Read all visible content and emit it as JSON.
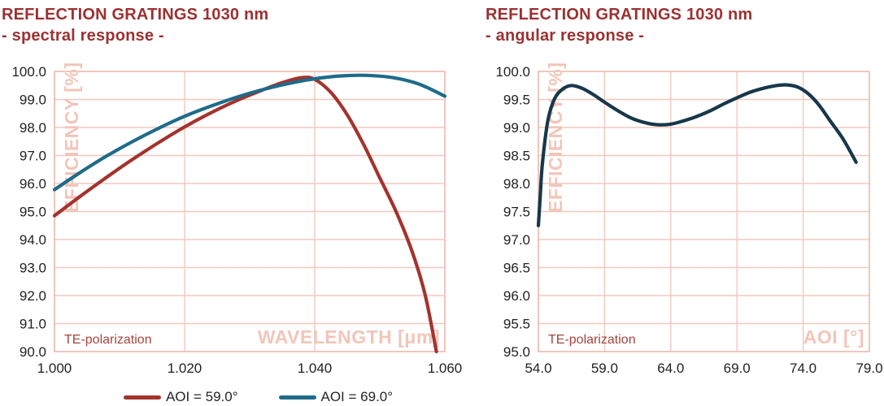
{
  "colors": {
    "title": "#9c3132",
    "grid": "#f3c8bd",
    "border": "#eebfb3",
    "watermark": "#f2c5b9",
    "annotation": "#a5443c",
    "tick": "#222222",
    "legend_text": "#262626"
  },
  "chart_data": [
    {
      "type": "line",
      "title": "REFLECTION GRATINGS 1030 nm",
      "subtitle": "- spectral response -",
      "xlabel": "WAVELENGTH [μm]",
      "ylabel": "EFFICIENCY [%]",
      "annotation": "TE-polarization",
      "xlim": [
        1.0,
        1.06
      ],
      "ylim": [
        90.0,
        100.0
      ],
      "grid": true,
      "legend_position": "bottom",
      "xticks": {
        "values": [
          1.0,
          1.02,
          1.04,
          1.06
        ],
        "labels": [
          "1.000",
          "1.020",
          "1.040",
          "1.060"
        ]
      },
      "yticks": {
        "values": [
          90,
          91,
          92,
          93,
          94,
          95,
          96,
          97,
          98,
          99,
          100
        ],
        "labels": [
          "90.0",
          "91.0",
          "92.0",
          "93.0",
          "94.0",
          "95.0",
          "96.0",
          "97.0",
          "98.0",
          "99.0",
          "100.0"
        ]
      },
      "series": [
        {
          "name": "AOI = 59.0°",
          "color": "#a3332e",
          "points": [
            [
              1.0,
              94.85
            ],
            [
              1.004,
              95.55
            ],
            [
              1.008,
              96.22
            ],
            [
              1.012,
              96.86
            ],
            [
              1.016,
              97.46
            ],
            [
              1.02,
              98.02
            ],
            [
              1.024,
              98.52
            ],
            [
              1.028,
              98.96
            ],
            [
              1.032,
              99.34
            ],
            [
              1.035,
              99.6
            ],
            [
              1.038,
              99.78
            ],
            [
              1.04,
              99.72
            ],
            [
              1.0425,
              99.25
            ],
            [
              1.045,
              98.45
            ],
            [
              1.0475,
              97.4
            ],
            [
              1.05,
              96.2
            ],
            [
              1.0525,
              95.0
            ],
            [
              1.055,
              93.55
            ],
            [
              1.057,
              92.0
            ],
            [
              1.0587,
              90.0
            ]
          ]
        },
        {
          "name": "AOI = 69.0°",
          "color": "#1e6b8a",
          "points": [
            [
              1.0,
              95.78
            ],
            [
              1.004,
              96.4
            ],
            [
              1.008,
              96.98
            ],
            [
              1.012,
              97.5
            ],
            [
              1.016,
              97.97
            ],
            [
              1.02,
              98.4
            ],
            [
              1.024,
              98.76
            ],
            [
              1.028,
              99.08
            ],
            [
              1.032,
              99.35
            ],
            [
              1.036,
              99.57
            ],
            [
              1.04,
              99.74
            ],
            [
              1.044,
              99.84
            ],
            [
              1.048,
              99.86
            ],
            [
              1.052,
              99.78
            ],
            [
              1.056,
              99.55
            ],
            [
              1.06,
              99.12
            ]
          ]
        }
      ]
    },
    {
      "type": "line",
      "title": "REFLECTION GRATINGS 1030 nm",
      "subtitle": "- angular response -",
      "xlabel": "AOI [°]",
      "ylabel": "EFFICIENCY [%]",
      "annotation": "TE-polarization",
      "xlim": [
        54.0,
        79.0
      ],
      "ylim": [
        95.0,
        100.0
      ],
      "grid": true,
      "legend_position": "none",
      "xticks": {
        "values": [
          54,
          59,
          64,
          69,
          74,
          79
        ],
        "labels": [
          "54.0",
          "59.0",
          "64.0",
          "69.0",
          "74.0",
          "79.0"
        ]
      },
      "yticks": {
        "values": [
          95,
          95.5,
          96,
          96.5,
          97,
          97.5,
          98,
          98.5,
          99,
          99.5,
          100
        ],
        "labels": [
          "95.0",
          "95.5",
          "96.0",
          "96.5",
          "97.0",
          "97.5",
          "98.0",
          "98.5",
          "99.0",
          "99.5",
          "100.0"
        ]
      },
      "series": [
        {
          "name": "",
          "color": "#17384a",
          "points": [
            [
              54.0,
              97.25
            ],
            [
              54.15,
              97.8
            ],
            [
              54.3,
              98.35
            ],
            [
              54.7,
              99.1
            ],
            [
              55.2,
              99.5
            ],
            [
              55.8,
              99.68
            ],
            [
              56.5,
              99.75
            ],
            [
              57.3,
              99.7
            ],
            [
              58.2,
              99.58
            ],
            [
              59.0,
              99.45
            ],
            [
              60.0,
              99.3
            ],
            [
              61.0,
              99.17
            ],
            [
              62.0,
              99.09
            ],
            [
              63.0,
              99.05
            ],
            [
              64.0,
              99.06
            ],
            [
              65.0,
              99.12
            ],
            [
              66.0,
              99.2
            ],
            [
              67.0,
              99.3
            ],
            [
              68.0,
              99.42
            ],
            [
              69.0,
              99.53
            ],
            [
              70.0,
              99.63
            ],
            [
              71.0,
              99.7
            ],
            [
              72.0,
              99.75
            ],
            [
              72.8,
              99.76
            ],
            [
              73.6,
              99.72
            ],
            [
              74.4,
              99.6
            ],
            [
              75.2,
              99.4
            ],
            [
              76.0,
              99.13
            ],
            [
              77.0,
              98.8
            ],
            [
              78.0,
              98.38
            ]
          ]
        }
      ]
    }
  ]
}
